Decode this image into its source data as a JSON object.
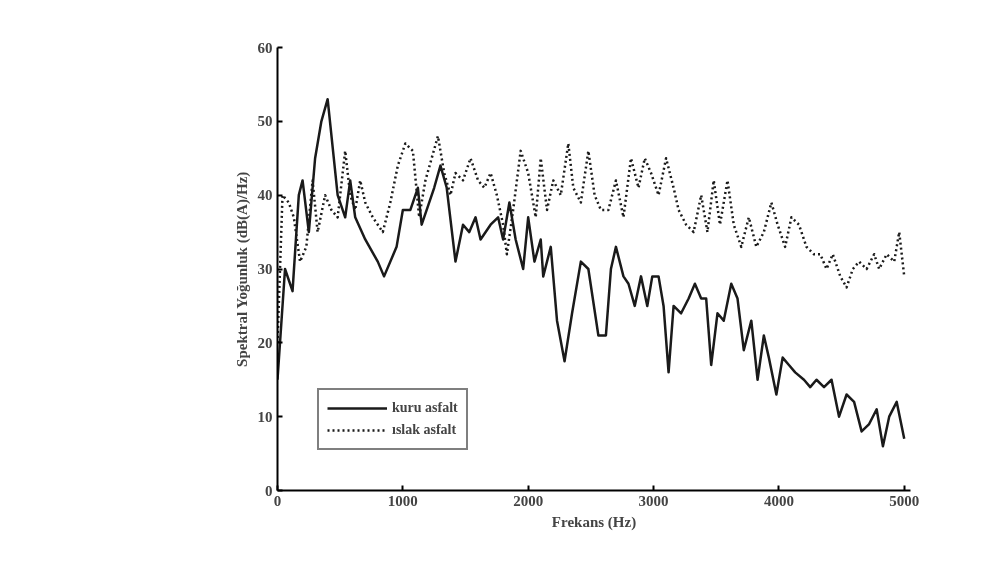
{
  "chart_data": {
    "type": "line",
    "xlabel": "Frekans (Hz)",
    "ylabel": "Spektral Yoğunluk (dB(A)/Hz)",
    "xlim": [
      0,
      5050
    ],
    "ylim": [
      0,
      60
    ],
    "xticks": [
      0,
      1000,
      2000,
      3000,
      4000,
      5000
    ],
    "yticks": [
      0,
      10,
      20,
      30,
      40,
      50,
      60
    ],
    "grid": false,
    "legend": "bottom left",
    "marker": "none",
    "series": [
      {
        "name": "kuru asfalt",
        "color": "#1a1a1a",
        "line_style": "solid",
        "x": [
          0,
          60,
          120,
          170,
          200,
          250,
          300,
          350,
          400,
          480,
          540,
          580,
          620,
          700,
          800,
          850,
          950,
          1000,
          1060,
          1120,
          1150,
          1250,
          1300,
          1350,
          1420,
          1480,
          1530,
          1580,
          1620,
          1700,
          1760,
          1800,
          1850,
          1900,
          1960,
          2000,
          2050,
          2100,
          2120,
          2180,
          2230,
          2290,
          2350,
          2420,
          2480,
          2560,
          2620,
          2660,
          2700,
          2760,
          2800,
          2850,
          2900,
          2950,
          2990,
          3040,
          3080,
          3120,
          3160,
          3220,
          3280,
          3330,
          3380,
          3420,
          3460,
          3510,
          3560,
          3620,
          3670,
          3720,
          3780,
          3830,
          3880,
          3920,
          3980,
          4030,
          4080,
          4130,
          4200,
          4250,
          4300,
          4360,
          4420,
          4480,
          4540,
          4600,
          4660,
          4720,
          4780,
          4830,
          4880,
          4940,
          5000
        ],
        "values": [
          15,
          30,
          27,
          40,
          42,
          35,
          45,
          50,
          53,
          40,
          37,
          42,
          37,
          34,
          31,
          29,
          33,
          38,
          38,
          41,
          36,
          41,
          44,
          41,
          31,
          36,
          35,
          37,
          34,
          36,
          37,
          34,
          39,
          34,
          30,
          37,
          31,
          34,
          29,
          33,
          23,
          17.5,
          24,
          31,
          30,
          21,
          21,
          30,
          33,
          29,
          28,
          25,
          29,
          25,
          29,
          29,
          25,
          16,
          25,
          24,
          26,
          28,
          26,
          26,
          17,
          24,
          23,
          28,
          26,
          19,
          23,
          15,
          21,
          18,
          13,
          18,
          17,
          16,
          15,
          14,
          15,
          14,
          15,
          10,
          13,
          12,
          8,
          9,
          11,
          6,
          10,
          12,
          7
        ]
      },
      {
        "name": "ıslak asfalt",
        "color": "#1a1a1a",
        "line_style": "dotted",
        "x": [
          0,
          40,
          90,
          130,
          180,
          230,
          280,
          320,
          380,
          430,
          480,
          540,
          580,
          620,
          660,
          700,
          760,
          800,
          840,
          900,
          960,
          1020,
          1080,
          1130,
          1180,
          1280,
          1330,
          1380,
          1420,
          1480,
          1540,
          1600,
          1650,
          1700,
          1750,
          1800,
          1830,
          1880,
          1940,
          2000,
          2060,
          2100,
          2150,
          2200,
          2260,
          2320,
          2360,
          2420,
          2480,
          2530,
          2580,
          2640,
          2700,
          2760,
          2820,
          2880,
          2930,
          2980,
          3040,
          3100,
          3160,
          3200,
          3260,
          3320,
          3380,
          3430,
          3480,
          3530,
          3590,
          3640,
          3700,
          3760,
          3820,
          3880,
          3940,
          3990,
          4050,
          4100,
          4160,
          4220,
          4280,
          4330,
          4380,
          4430,
          4490,
          4540,
          4590,
          4640,
          4700,
          4760,
          4800,
          4860,
          4920,
          4960,
          5000
        ],
        "values": [
          20,
          40,
          39,
          37,
          31,
          33,
          42,
          35,
          40,
          38,
          37,
          46,
          40,
          38,
          42,
          39,
          37,
          36,
          35,
          39,
          44,
          47,
          46,
          37,
          42,
          48,
          43,
          40,
          43,
          42,
          45,
          42,
          41,
          43,
          40,
          36,
          32,
          38,
          46,
          43,
          37,
          45,
          38,
          42,
          40,
          47,
          41,
          39,
          46,
          40,
          38,
          38,
          42,
          37,
          45,
          41,
          45,
          43,
          40,
          45,
          41,
          38,
          36,
          35,
          40,
          35,
          42,
          36,
          42,
          36,
          33,
          37,
          33,
          35,
          39,
          36,
          33,
          37,
          36,
          33,
          32,
          32,
          30,
          32,
          29,
          27.5,
          30,
          31,
          30,
          32,
          30,
          32,
          31,
          35,
          29
        ]
      }
    ]
  }
}
